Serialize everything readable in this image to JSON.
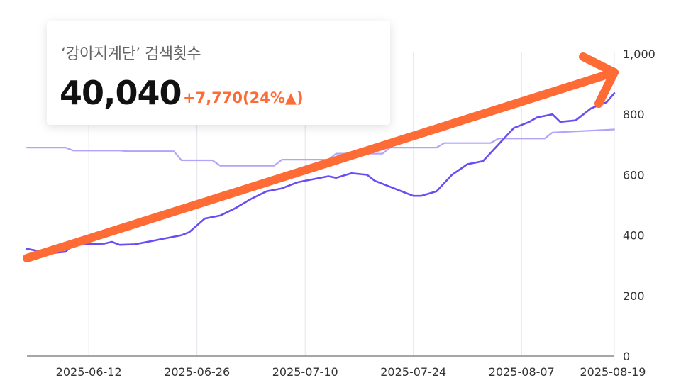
{
  "colors": {
    "primary_line": "#6a4cf4",
    "secondary_line": "#b3a3fb",
    "arrow": "#ff6b35",
    "change": "#ff6b35",
    "grid": "#e3e3ee"
  },
  "card": {
    "title": "‘강아지계단’ 검색횟수",
    "value": "40,040",
    "change": "+7,770(24%▲)"
  },
  "chart_data": {
    "type": "line",
    "title": "",
    "xlabel": "",
    "ylabel": "",
    "ylim": [
      0,
      1000
    ],
    "yticks": [
      0,
      200,
      400,
      600,
      800,
      1000
    ],
    "ytick_labels": [
      "0",
      "200",
      "400",
      "600",
      "800",
      "1,000"
    ],
    "xticks": [
      "2025-06-12",
      "2025-06-26",
      "2025-07-10",
      "2025-07-24",
      "2025-08-07",
      "2025-08-19"
    ],
    "x_domain": [
      "2025-06-04",
      "2025-08-19"
    ],
    "grid": true,
    "series": [
      {
        "key": "primary",
        "x": [
          "2025-06-04",
          "2025-06-07",
          "2025-06-09",
          "2025-06-10",
          "2025-06-12",
          "2025-06-14",
          "2025-06-15",
          "2025-06-16",
          "2025-06-18",
          "2025-06-19",
          "2025-06-21",
          "2025-06-22",
          "2025-06-24",
          "2025-06-25",
          "2025-06-27",
          "2025-06-29",
          "2025-07-01",
          "2025-07-03",
          "2025-07-05",
          "2025-07-07",
          "2025-07-09",
          "2025-07-10",
          "2025-07-13",
          "2025-07-14",
          "2025-07-16",
          "2025-07-18",
          "2025-07-19",
          "2025-07-21",
          "2025-07-23",
          "2025-07-24",
          "2025-07-25",
          "2025-07-27",
          "2025-07-29",
          "2025-07-31",
          "2025-08-02",
          "2025-08-04",
          "2025-08-06",
          "2025-08-08",
          "2025-08-09",
          "2025-08-11",
          "2025-08-12",
          "2025-08-14",
          "2025-08-16",
          "2025-08-18",
          "2025-08-19"
        ],
        "values": [
          355,
          340,
          345,
          370,
          370,
          372,
          378,
          368,
          370,
          375,
          385,
          390,
          400,
          410,
          455,
          465,
          490,
          520,
          545,
          555,
          575,
          580,
          595,
          590,
          605,
          600,
          580,
          560,
          540,
          530,
          530,
          545,
          600,
          635,
          645,
          700,
          755,
          775,
          790,
          800,
          775,
          780,
          820,
          840,
          870
        ]
      },
      {
        "key": "secondary",
        "x": [
          "2025-06-04",
          "2025-06-09",
          "2025-06-10",
          "2025-06-16",
          "2025-06-17",
          "2025-06-23",
          "2025-06-24",
          "2025-06-26",
          "2025-06-28",
          "2025-06-29",
          "2025-07-06",
          "2025-07-07",
          "2025-07-10",
          "2025-07-13",
          "2025-07-14",
          "2025-07-20",
          "2025-07-21",
          "2025-07-27",
          "2025-07-28",
          "2025-08-03",
          "2025-08-04",
          "2025-08-10",
          "2025-08-11",
          "2025-08-19"
        ],
        "values": [
          690,
          690,
          680,
          680,
          678,
          678,
          648,
          648,
          648,
          630,
          630,
          650,
          650,
          650,
          670,
          670,
          690,
          690,
          705,
          705,
          720,
          720,
          740,
          750
        ]
      }
    ]
  }
}
